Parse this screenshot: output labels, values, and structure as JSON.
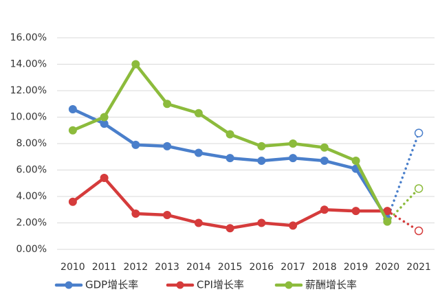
{
  "chart_data": {
    "type": "line",
    "categories": [
      "2010",
      "2011",
      "2012",
      "2013",
      "2014",
      "2015",
      "2016",
      "2017",
      "2018",
      "2019",
      "2020",
      "2021"
    ],
    "ylim": [
      0,
      16
    ],
    "yticks": [
      "0.00%",
      "2.00%",
      "4.00%",
      "6.00%",
      "8.00%",
      "10.00%",
      "12.00%",
      "14.00%",
      "16.00%"
    ],
    "grid": true,
    "legend_position": "bottom",
    "series": [
      {
        "name": "GDP增长率",
        "color": "#4a7fcb",
        "values": [
          10.6,
          9.5,
          7.9,
          7.8,
          7.3,
          6.9,
          6.7,
          6.9,
          6.7,
          6.1,
          2.3,
          8.8
        ],
        "projected_from_index": 10
      },
      {
        "name": "CPI增长率",
        "color": "#d53b3b",
        "values": [
          3.6,
          5.4,
          2.7,
          2.6,
          2.0,
          1.6,
          2.0,
          1.8,
          3.0,
          2.9,
          2.9,
          1.4
        ],
        "projected_from_index": 10
      },
      {
        "name": "薪酬增长率",
        "color": "#8cbb3c",
        "values": [
          9.0,
          10.0,
          14.0,
          11.0,
          10.3,
          8.7,
          7.8,
          8.0,
          7.7,
          6.7,
          2.1,
          4.6
        ],
        "projected_from_index": 10
      }
    ]
  }
}
